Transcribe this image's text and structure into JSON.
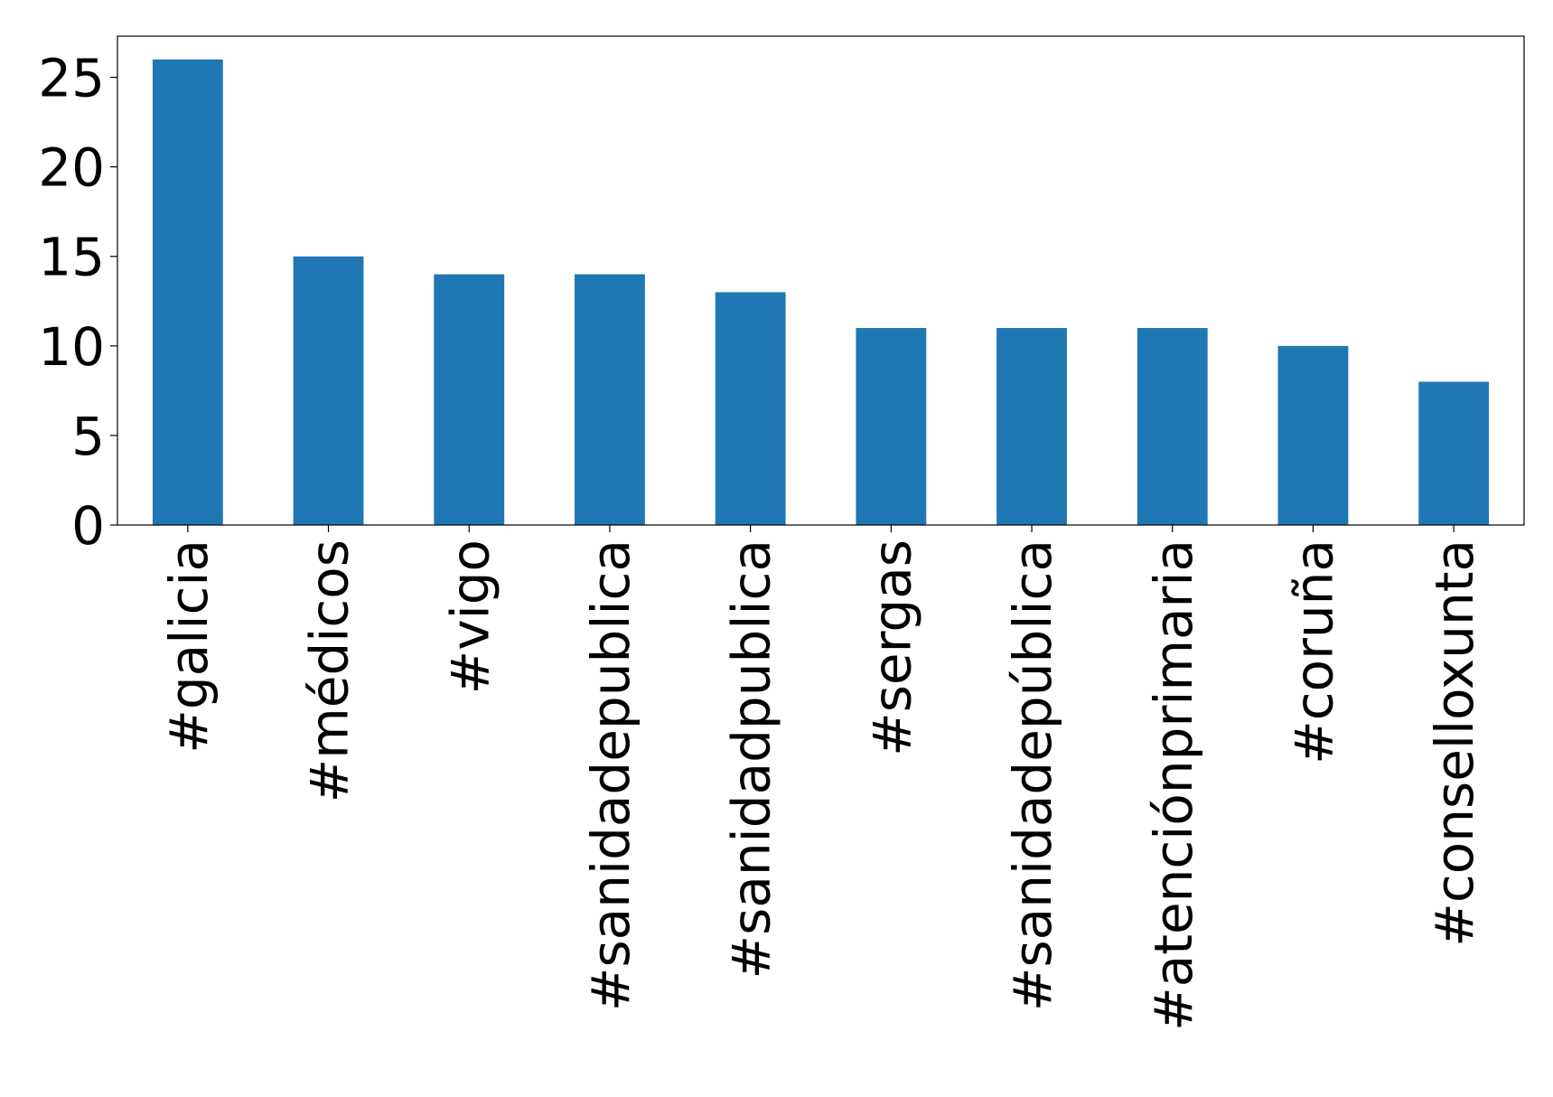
{
  "chart_data": {
    "type": "bar",
    "categories": [
      "#galicia",
      "#médicos",
      "#vigo",
      "#sanidadepublica",
      "#sanidadpublica",
      "#sergas",
      "#sanidadepública",
      "#atenciónprimaria",
      "#coruña",
      "#conselloxunta"
    ],
    "values": [
      26,
      15,
      14,
      14,
      13,
      11,
      11,
      11,
      10,
      8
    ],
    "color": "#1f77b4",
    "ylim": [
      0,
      27.3
    ],
    "yticks": [
      0,
      5,
      10,
      15,
      20,
      25
    ],
    "grid": false
  }
}
